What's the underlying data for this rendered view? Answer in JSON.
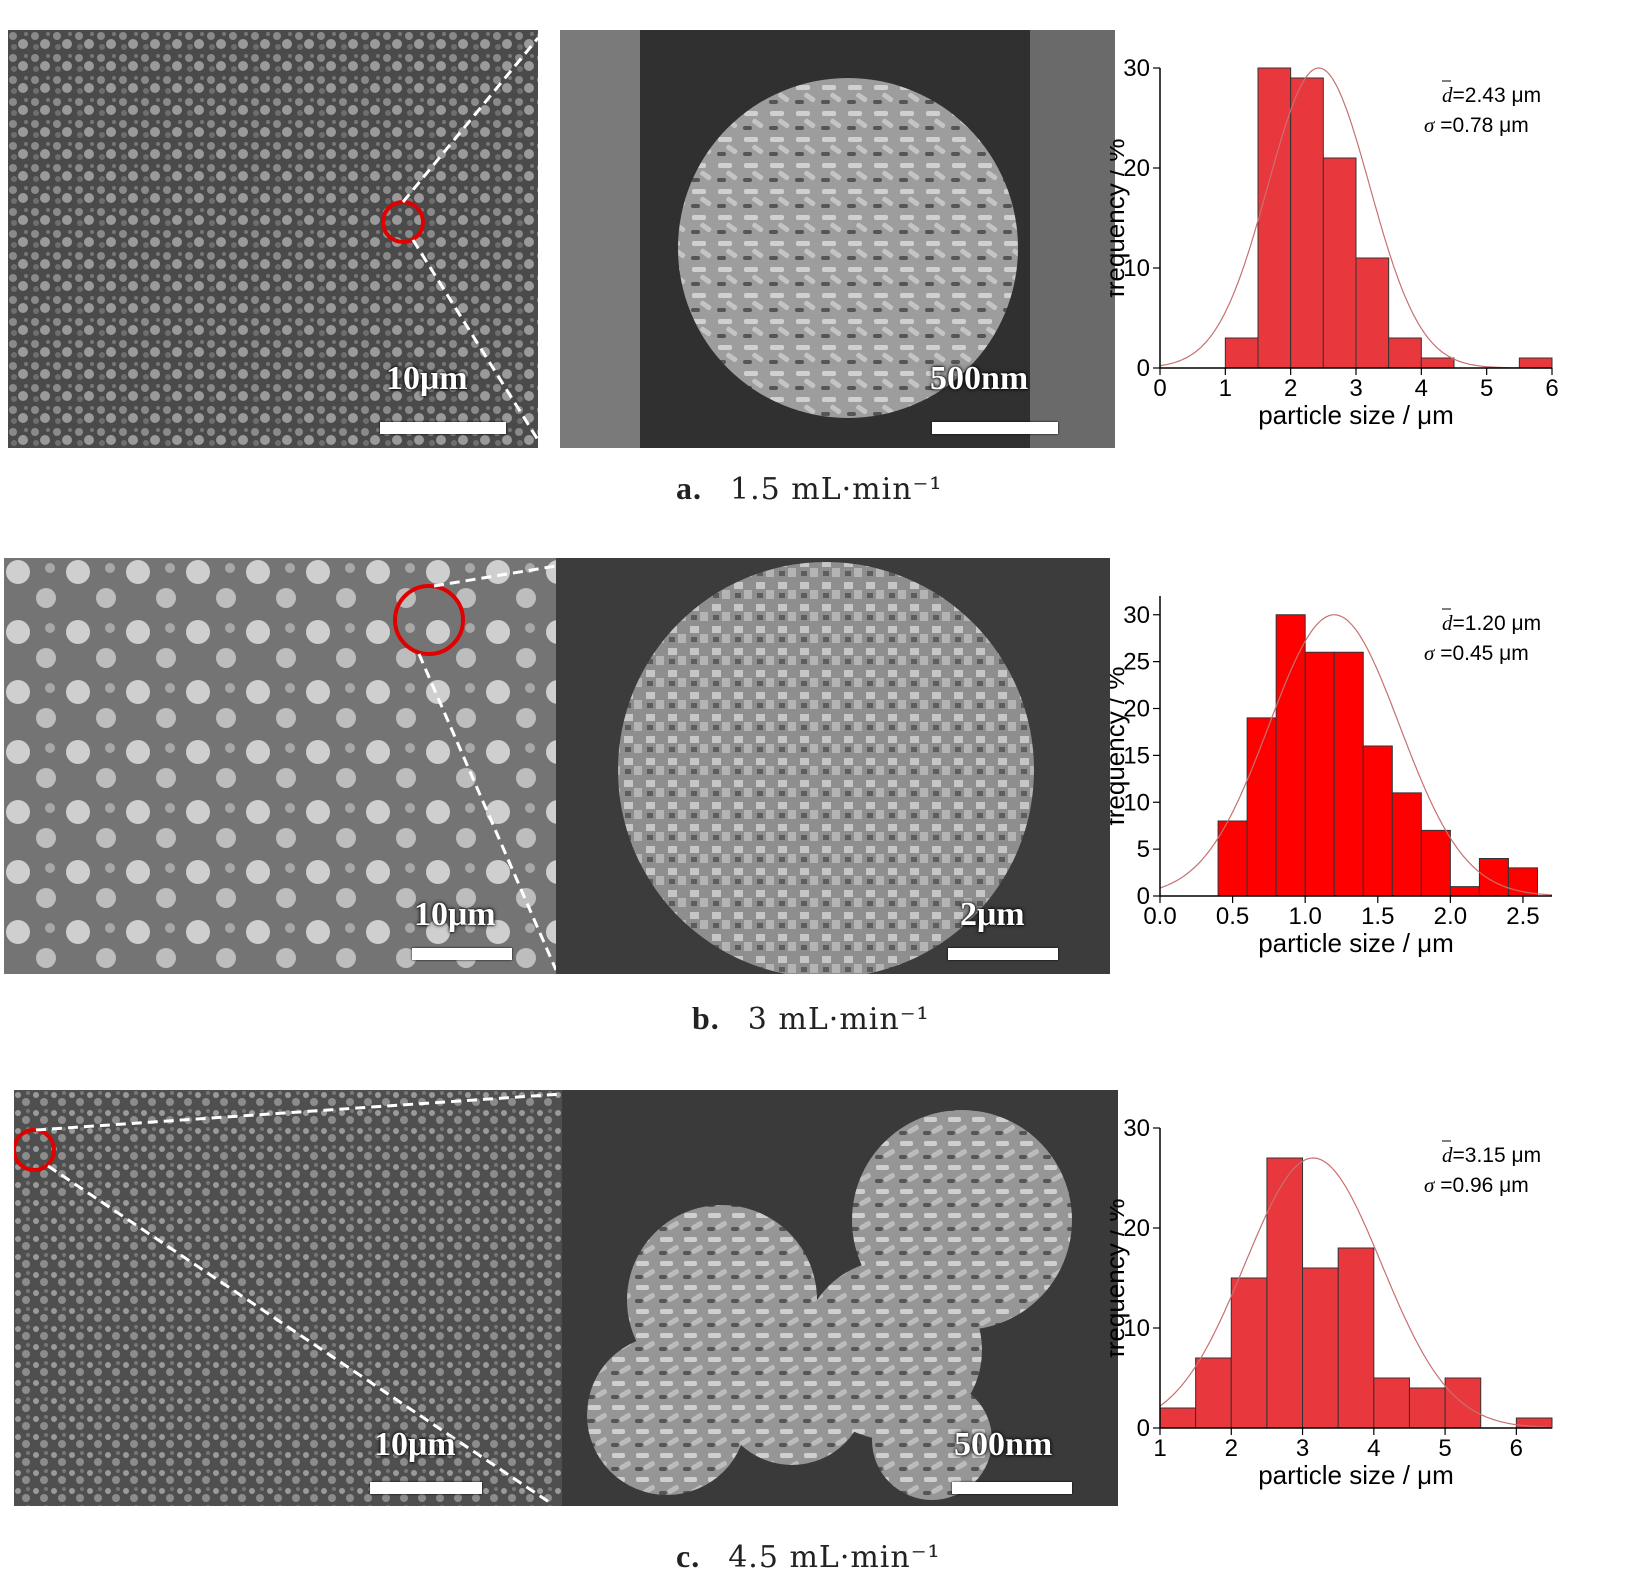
{
  "rows": [
    {
      "id": "a",
      "caption_letter": "a.",
      "caption_text": "1.5 mL·min⁻¹",
      "overview_scale": "10μm",
      "zoom_scale": "500nm",
      "chart_data": {
        "type": "bar",
        "categories": [
          "1.25",
          "1.75",
          "2.25",
          "2.75",
          "3.25",
          "3.75",
          "4.25",
          "4.75",
          "5.25",
          "5.75"
        ],
        "bins": [
          [
            1.0,
            1.5
          ],
          [
            1.5,
            2.0
          ],
          [
            2.0,
            2.5
          ],
          [
            2.5,
            3.0
          ],
          [
            3.0,
            3.5
          ],
          [
            3.5,
            4.0
          ],
          [
            4.0,
            4.5
          ],
          [
            4.5,
            5.0
          ],
          [
            5.0,
            5.5
          ],
          [
            5.5,
            6.0
          ]
        ],
        "values": [
          3,
          30,
          29,
          21,
          11,
          3,
          1,
          0,
          0,
          1
        ],
        "fit": {
          "type": "gaussian",
          "mean": 2.43,
          "sigma": 0.78,
          "peak": 30
        },
        "xlabel": "particle size / μm",
        "ylabel": "frequency / %",
        "xlim": [
          0,
          6
        ],
        "ylim": [
          0,
          30
        ],
        "xticks": [
          "0",
          "1",
          "2",
          "3",
          "4",
          "5",
          "6"
        ],
        "yticks": [
          "0",
          "10",
          "20",
          "30"
        ],
        "annotation_d": "=2.43 μm",
        "annotation_sigma": "=0.78 μm",
        "bar_color": "#e8383d"
      }
    },
    {
      "id": "b",
      "caption_letter": "b.",
      "caption_text": "3 mL·min⁻¹",
      "overview_scale": "10μm",
      "zoom_scale": "2μm",
      "chart_data": {
        "type": "bar",
        "categories": [
          "0.45",
          "0.65",
          "0.85",
          "1.05",
          "1.25",
          "1.45",
          "1.65",
          "1.85",
          "2.05",
          "2.25",
          "2.45"
        ],
        "bins": [
          [
            0.4,
            0.6
          ],
          [
            0.6,
            0.8
          ],
          [
            0.8,
            1.0
          ],
          [
            1.0,
            1.2
          ],
          [
            1.2,
            1.4
          ],
          [
            1.4,
            1.6
          ],
          [
            1.6,
            1.8
          ],
          [
            1.8,
            2.0
          ],
          [
            2.0,
            2.2
          ],
          [
            2.2,
            2.4
          ],
          [
            2.4,
            2.6
          ]
        ],
        "values": [
          8,
          19,
          30,
          26,
          26,
          16,
          11,
          7,
          1,
          4,
          3
        ],
        "fit": {
          "type": "gaussian",
          "mean": 1.2,
          "sigma": 0.45,
          "peak": 30
        },
        "xlabel": "particle size / μm",
        "ylabel": "frequency / %",
        "xlim": [
          0,
          2.7
        ],
        "ylim": [
          0,
          32
        ],
        "xticks": [
          "0.0",
          "0.5",
          "1.0",
          "1.5",
          "2.0",
          "2.5"
        ],
        "yticks": [
          "0",
          "5",
          "10",
          "15",
          "20",
          "25",
          "30"
        ],
        "annotation_d": "=1.20 μm",
        "annotation_sigma": "=0.45 μm",
        "bar_color": "#ff0000"
      }
    },
    {
      "id": "c",
      "caption_letter": "c.",
      "caption_text": "4.5 mL·min⁻¹",
      "overview_scale": "10μm",
      "zoom_scale": "500nm",
      "chart_data": {
        "type": "bar",
        "categories": [
          "1.25",
          "1.75",
          "2.25",
          "2.75",
          "3.25",
          "3.75",
          "4.25",
          "4.75",
          "5.25",
          "5.75",
          "6.25"
        ],
        "bins": [
          [
            1.0,
            1.5
          ],
          [
            1.5,
            2.0
          ],
          [
            2.0,
            2.5
          ],
          [
            2.5,
            3.0
          ],
          [
            3.0,
            3.5
          ],
          [
            3.5,
            4.0
          ],
          [
            4.0,
            4.5
          ],
          [
            4.5,
            5.0
          ],
          [
            5.0,
            5.5
          ],
          [
            5.5,
            6.0
          ],
          [
            6.0,
            6.5
          ]
        ],
        "values": [
          2,
          7,
          15,
          27,
          16,
          18,
          5,
          4,
          5,
          0,
          1
        ],
        "fit": {
          "type": "gaussian",
          "mean": 3.15,
          "sigma": 0.96,
          "peak": 27
        },
        "xlabel": "particle size / μm",
        "ylabel": "frequency / %",
        "xlim": [
          1,
          6.5
        ],
        "ylim": [
          0,
          30
        ],
        "xticks": [
          "1",
          "2",
          "3",
          "4",
          "5",
          "6"
        ],
        "yticks": [
          "0",
          "10",
          "20",
          "30"
        ],
        "annotation_d": "=3.15 μm",
        "annotation_sigma": "=0.96 μm",
        "bar_color": "#e8383d"
      }
    }
  ]
}
